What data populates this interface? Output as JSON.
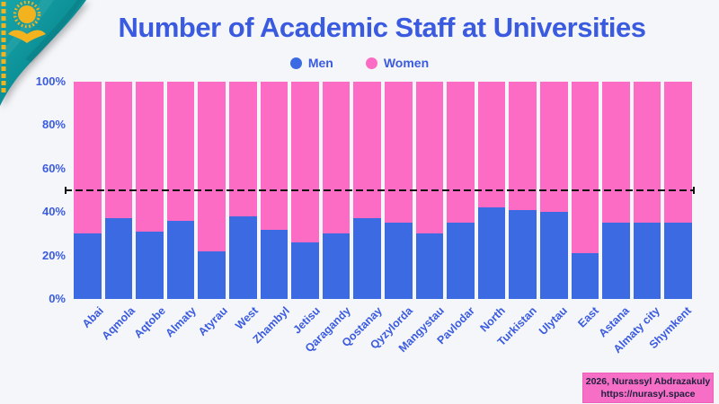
{
  "accent_color": "#3a5be0",
  "background_color": "#f5f6fa",
  "flag": {
    "name": "kazakhstan-flag",
    "teal": "#0f949b",
    "gold": "#f2b31f"
  },
  "chart_data": {
    "type": "bar",
    "stacked": true,
    "percent": true,
    "title": "Number of Academic Staff at Universities",
    "categories": [
      "Abai",
      "Aqmola",
      "Aqtobe",
      "Almaty",
      "Atyrau",
      "West",
      "Zhambyl",
      "Jetisu",
      "Qaragandy",
      "Qostanay",
      "Qyzylorda",
      "Mangystau",
      "Pavlodar",
      "North",
      "Turkistan",
      "Ulytau",
      "East",
      "Astana",
      "Almaty city",
      "Shymkent"
    ],
    "series": [
      {
        "name": "Men",
        "color": "#3b6ae3",
        "values": [
          30,
          37,
          31,
          36,
          22,
          38,
          32,
          26,
          30,
          37,
          35,
          30,
          35,
          42,
          41,
          40,
          21,
          35,
          35,
          35
        ]
      },
      {
        "name": "Women",
        "color": "#fc6cc4",
        "values": [
          70,
          63,
          69,
          64,
          78,
          62,
          68,
          74,
          70,
          63,
          65,
          70,
          65,
          58,
          59,
          60,
          79,
          65,
          65,
          65
        ]
      }
    ],
    "y_ticks": [
      "0%",
      "20%",
      "40%",
      "60%",
      "80%",
      "100%"
    ],
    "ylim": [
      0,
      100
    ],
    "ylabel": "",
    "xlabel": "",
    "grid": false,
    "legend_position": "top",
    "reference_line": {
      "value": 50,
      "style": "dashed",
      "color": "#111111"
    }
  },
  "attribution": {
    "line1": "2026, Nurassyl Abdrazakuly",
    "line2": "https://nurasyl.space",
    "background": "#f66ec5"
  }
}
